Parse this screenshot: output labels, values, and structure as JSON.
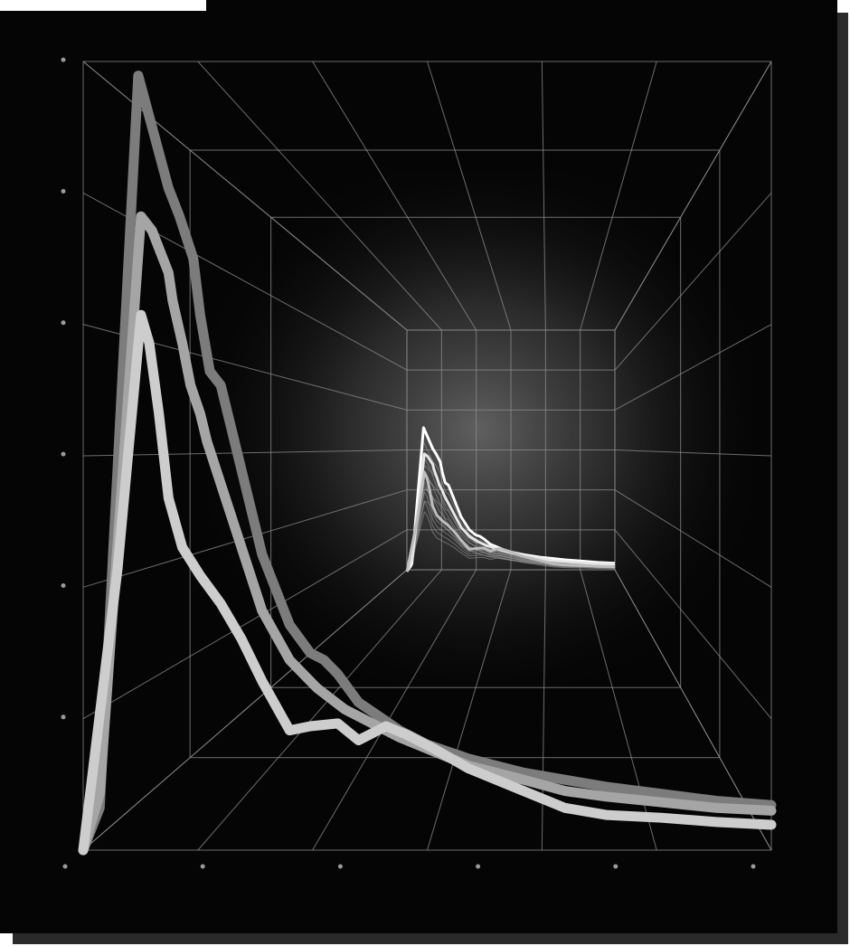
{
  "colors": {
    "page_background": "#ffffff",
    "panel_background": "#050505",
    "grid_line": "#8f8f8f",
    "foreground_series": [
      "#7c7c7c",
      "#a5a5a5",
      "#cdcdcd"
    ],
    "inset_series": [
      "#ffffff",
      "#e6e6e6",
      "#bdbdbd"
    ]
  },
  "chart_data": {
    "type": "line",
    "title": "",
    "xlabel": "",
    "ylabel": "",
    "grid": true,
    "legend": "none",
    "three_d_room": true,
    "x_ticks": [
      "",
      "",
      "",
      "",
      "",
      ""
    ],
    "y_ticks": [
      "",
      "",
      "",
      "",
      "",
      ""
    ],
    "xlim": [
      0,
      5
    ],
    "ylim": [
      0,
      5.6
    ],
    "series": [
      {
        "x": [
          0,
          0.12,
          0.4,
          0.62,
          0.7,
          0.8,
          0.85,
          0.92,
          1.0,
          1.1,
          1.2,
          1.3,
          1.5,
          1.65,
          1.75,
          1.85,
          2.0,
          2.3,
          2.5,
          2.8,
          3.2,
          3.5,
          3.8,
          4.2,
          4.6,
          5.0
        ],
        "y": [
          0,
          0.3,
          5.5,
          4.7,
          4.5,
          4.2,
          3.8,
          3.4,
          3.3,
          2.9,
          2.5,
          2.1,
          1.6,
          1.4,
          1.35,
          1.25,
          1.05,
          0.85,
          0.75,
          0.65,
          0.55,
          0.5,
          0.45,
          0.4,
          0.35,
          0.32
        ]
      },
      {
        "x": [
          0,
          0.12,
          0.42,
          0.5,
          0.62,
          0.65,
          0.72,
          0.78,
          0.85,
          0.9,
          1.0,
          1.1,
          1.3,
          1.5,
          1.7,
          1.9,
          2.1,
          2.3,
          2.5,
          2.8,
          3.2,
          3.5,
          3.8,
          4.2,
          4.6,
          5.0
        ],
        "y": [
          0,
          0.4,
          4.5,
          4.4,
          4.1,
          3.9,
          3.6,
          3.3,
          3.1,
          2.9,
          2.6,
          2.3,
          1.7,
          1.35,
          1.15,
          1.0,
          0.9,
          0.8,
          0.72,
          0.6,
          0.5,
          0.42,
          0.38,
          0.34,
          0.3,
          0.28
        ]
      },
      {
        "x": [
          0,
          0.25,
          0.42,
          0.48,
          0.55,
          0.62,
          0.72,
          0.85,
          1.0,
          1.15,
          1.3,
          1.5,
          1.65,
          1.85,
          2.0,
          2.2,
          2.35,
          2.55,
          2.8,
          3.2,
          3.5,
          3.8,
          4.2,
          4.6,
          5.0
        ],
        "y": [
          0,
          2.0,
          3.8,
          3.6,
          3.1,
          2.5,
          2.15,
          1.95,
          1.75,
          1.5,
          1.2,
          0.85,
          0.88,
          0.9,
          0.78,
          0.88,
          0.82,
          0.72,
          0.58,
          0.42,
          0.3,
          0.25,
          0.23,
          0.2,
          0.18
        ]
      }
    ]
  }
}
